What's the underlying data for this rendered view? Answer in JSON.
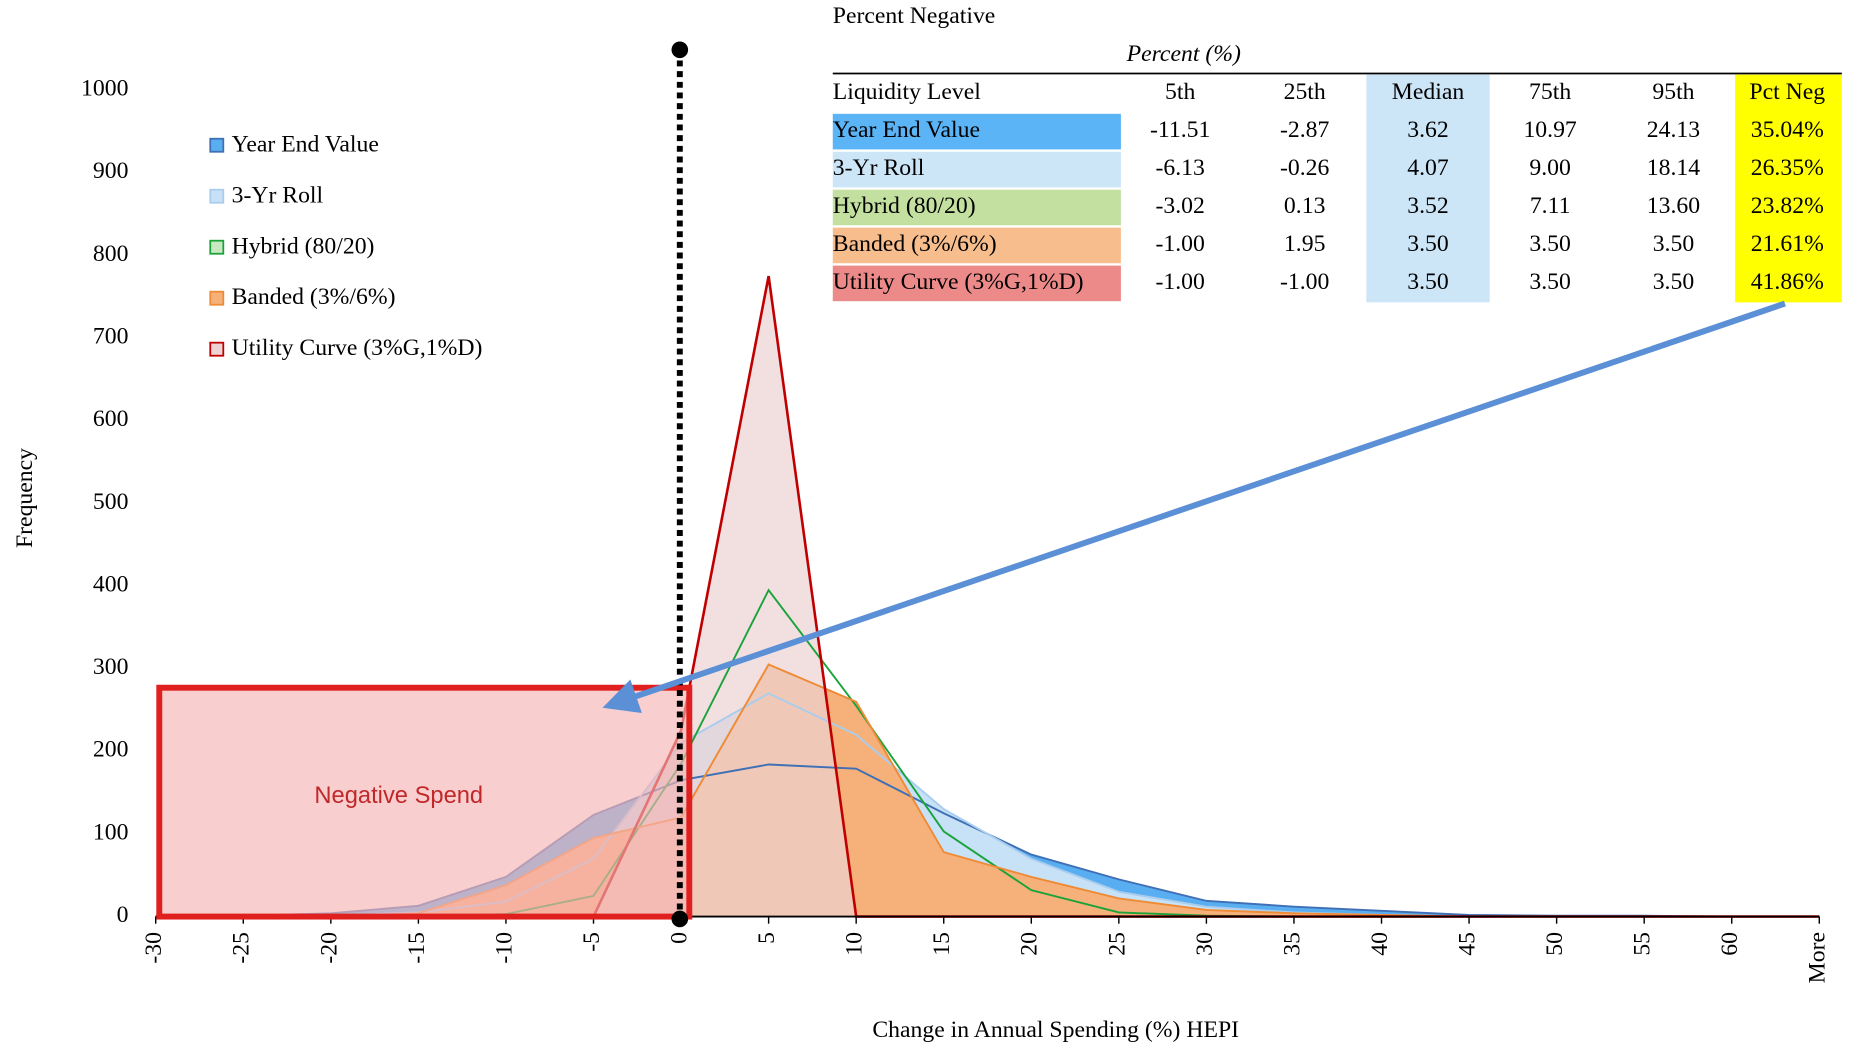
{
  "chart_data": {
    "type": "area",
    "x_label": "Change in Annual Spending (%) HEPI",
    "y_label": "Frequency",
    "categories": [
      "-30",
      "-25",
      "-20",
      "-15",
      "-10",
      "-5",
      "0",
      "5",
      "10",
      "15",
      "20",
      "25",
      "30",
      "35",
      "40",
      "45",
      "50",
      "55",
      "60",
      "More"
    ],
    "ylim": [
      0,
      1000
    ],
    "yticks": [
      0,
      100,
      200,
      300,
      400,
      500,
      600,
      700,
      800,
      900,
      1000
    ],
    "legend": "upper left",
    "annotations": [
      "Negative Spend"
    ],
    "series": [
      {
        "name": "Year End Value",
        "color": "#3f6fb5",
        "fill": "#58aef0",
        "values": [
          0,
          1,
          4,
          13,
          48,
          123,
          165,
          184,
          179,
          125,
          75,
          45,
          19,
          12,
          7,
          2,
          1,
          1,
          0,
          0
        ]
      },
      {
        "name": "3-Yr Roll",
        "color": "#a9cdee",
        "fill": "#c7e1f6",
        "values": [
          0,
          0,
          1,
          5,
          18,
          70,
          210,
          270,
          220,
          130,
          70,
          30,
          12,
          5,
          2,
          0,
          0,
          0,
          0,
          0
        ]
      },
      {
        "name": "Hybrid (80/20)",
        "color": "#1aa33a",
        "fill": "#c9e8c2",
        "values": [
          0,
          0,
          0,
          0,
          3,
          25,
          185,
          395,
          255,
          103,
          32,
          5,
          1,
          0,
          0,
          0,
          0,
          0,
          0,
          0
        ]
      },
      {
        "name": "Banded (3%/6%)",
        "color": "#ef8a35",
        "fill": "#f6b07a",
        "values": [
          0,
          0,
          0,
          4,
          38,
          95,
          120,
          305,
          260,
          78,
          48,
          22,
          8,
          4,
          2,
          0,
          0,
          0,
          0,
          0
        ]
      },
      {
        "name": "Utility Curve (3%G,1%D)",
        "color": "#c00000",
        "fill": "#edd3d3",
        "values": [
          0,
          0,
          0,
          0,
          0,
          0,
          225,
          775,
          0,
          0,
          0,
          0,
          0,
          0,
          0,
          0,
          0,
          0,
          0,
          0
        ]
      }
    ]
  },
  "table": {
    "title": "Percent Negative",
    "subtitle": "Percent (%)",
    "columns": [
      "Liquidity Level",
      "5th",
      "25th",
      "Median",
      "75th",
      "95th",
      "Pct Neg"
    ],
    "rows": [
      {
        "color": "#5ab4f5",
        "cells": [
          "Year End Value",
          "-11.51",
          "-2.87",
          "3.62",
          "10.97",
          "24.13",
          "35.04%"
        ]
      },
      {
        "color": "#cce6f8",
        "cells": [
          "3-Yr Roll",
          "-6.13",
          "-0.26",
          "4.07",
          "9.00",
          "18.14",
          "26.35%"
        ]
      },
      {
        "color": "#c3e0a1",
        "cells": [
          "Hybrid (80/20)",
          "-3.02",
          "0.13",
          "3.52",
          "7.11",
          "13.60",
          "23.82%"
        ]
      },
      {
        "color": "#f8bd8d",
        "cells": [
          "Banded (3%/6%)",
          "-1.00",
          "1.95",
          "3.50",
          "3.50",
          "3.50",
          "21.61%"
        ]
      },
      {
        "color": "#ec8a8a",
        "cells": [
          "Utility Curve (3%G,1%D)",
          "-1.00",
          "-1.00",
          "3.50",
          "3.50",
          "3.50",
          "41.86%"
        ]
      }
    ]
  }
}
